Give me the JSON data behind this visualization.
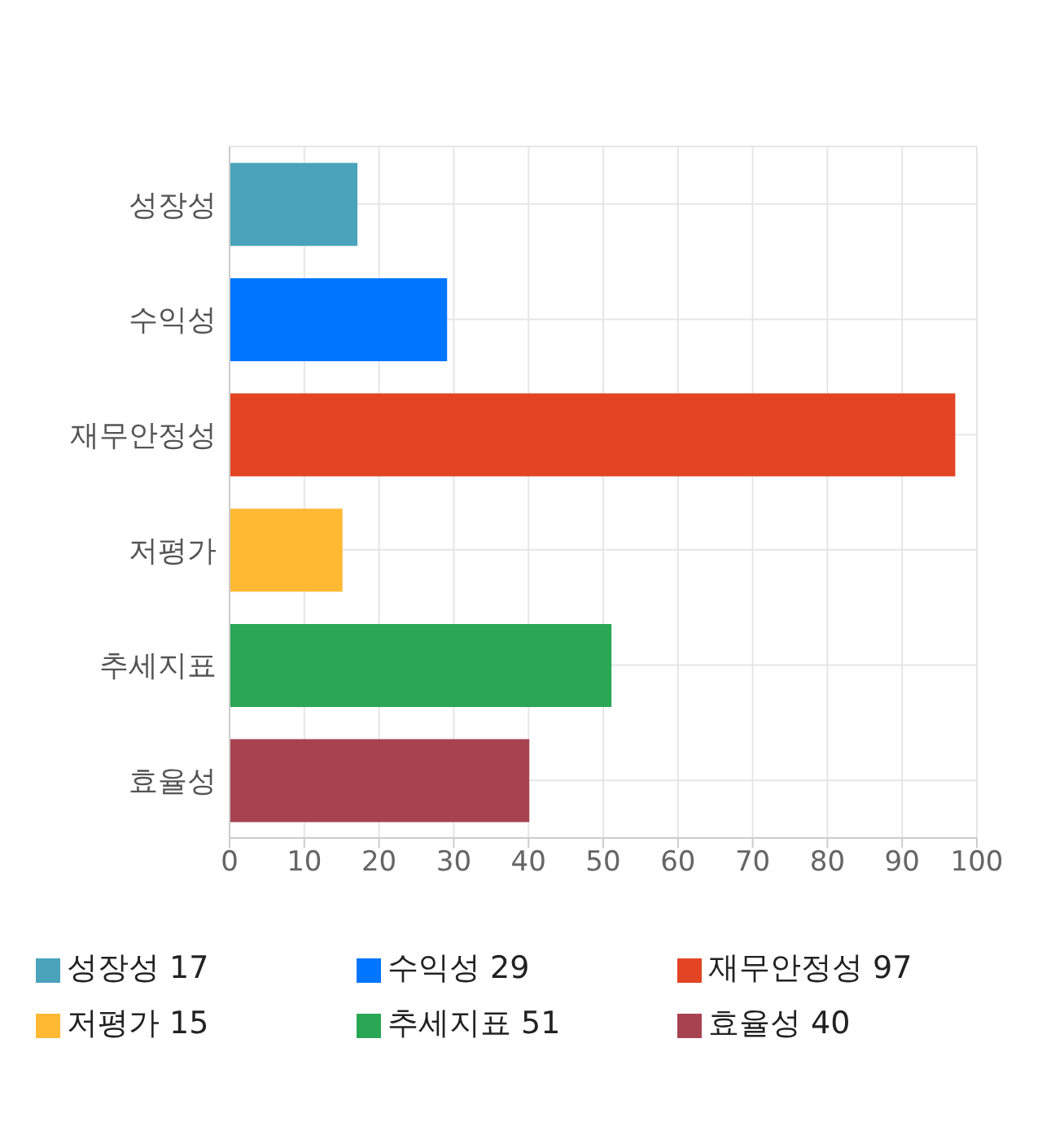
{
  "chart_data": {
    "type": "bar",
    "orientation": "horizontal",
    "stacked": true,
    "categories": [
      "성장성",
      "수익성",
      "재무안정성",
      "저평가",
      "추세지표",
      "효율성"
    ],
    "series": [
      {
        "name": "성장성 17",
        "color": "#4aa3bb",
        "values": [
          17,
          null,
          null,
          null,
          null,
          null
        ]
      },
      {
        "name": "수익성 29",
        "color": "#0076ff",
        "values": [
          null,
          29,
          null,
          null,
          null,
          null
        ]
      },
      {
        "name": "재무안정성 97",
        "color": "#e24424",
        "values": [
          null,
          null,
          97,
          null,
          null,
          null
        ]
      },
      {
        "name": "저평가 15",
        "color": "#ffb933",
        "values": [
          null,
          null,
          null,
          15,
          null,
          null
        ]
      },
      {
        "name": "추세지표 51",
        "color": "#29a755",
        "values": [
          null,
          null,
          null,
          null,
          51,
          null
        ]
      },
      {
        "name": "효율성 40",
        "color": "#a74251",
        "values": [
          null,
          null,
          null,
          null,
          null,
          40
        ]
      }
    ],
    "xlim": [
      0,
      100
    ],
    "xticks": [
      0,
      10,
      20,
      30,
      40,
      50,
      60,
      70,
      80,
      90,
      100
    ],
    "grid": true,
    "legend": "bottom"
  }
}
